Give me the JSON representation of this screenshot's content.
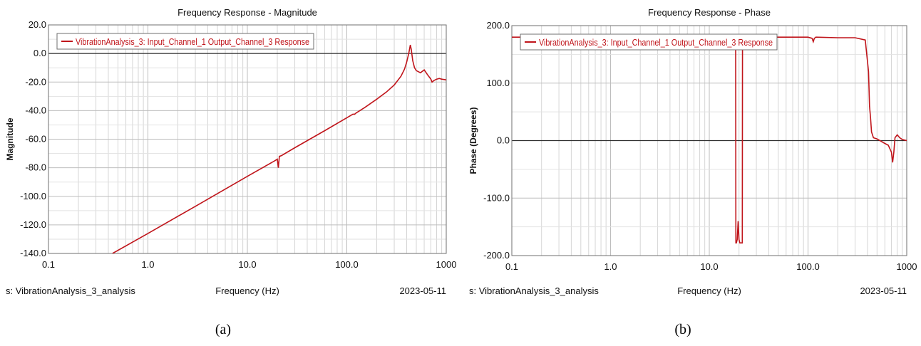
{
  "chart_data": [
    {
      "type": "line",
      "title": "Frequency Response - Magnitude",
      "xlabel": "Frequency (Hz)",
      "ylabel": "Magnitude",
      "xscale": "log",
      "xlim": [
        0.1,
        1000
      ],
      "ylim": [
        -140,
        20
      ],
      "xticks": [
        "0.1",
        "1.0",
        "10.0",
        "100.0",
        "1000"
      ],
      "yticks": [
        "20.0",
        "0.0",
        "-20.0",
        "-40.0",
        "-60.0",
        "-80.0",
        "-100.0",
        "-120.0",
        "-140.0"
      ],
      "grid": true,
      "legend_position": "top-left",
      "footer_left": "s:  VibrationAnalysis_3_analysis",
      "footer_right": "2023-05-11",
      "series": [
        {
          "name": "VibrationAnalysis_3: Input_Channel_1 Output_Channel_3 Response",
          "color": "#c0151b",
          "x": [
            0.44,
            1,
            3,
            10,
            19,
            20,
            20.5,
            21,
            22,
            30,
            60,
            100,
            115,
            120,
            125,
            150,
            200,
            250,
            300,
            350,
            380,
            400,
            420,
            435,
            445,
            460,
            480,
            500,
            550,
            600,
            650,
            700,
            720,
            750,
            800,
            850,
            900,
            1000
          ],
          "y": [
            -140,
            -126,
            -107,
            -86,
            -75,
            -74,
            -80,
            -72,
            -71.5,
            -66,
            -54,
            -45,
            -42.5,
            -42.5,
            -41.5,
            -38,
            -32,
            -27,
            -22,
            -16,
            -11,
            -6,
            0,
            6,
            3,
            -5,
            -10,
            -12,
            -13.5,
            -11.5,
            -15,
            -18,
            -20,
            -19,
            -18,
            -17.5,
            -18,
            -18.5
          ]
        }
      ]
    },
    {
      "type": "line",
      "title": "Frequency Response - Phase",
      "xlabel": "Frequency (Hz)",
      "ylabel": "Phase (Degrees)",
      "xscale": "log",
      "xlim": [
        0.1,
        1000
      ],
      "ylim": [
        -200,
        200
      ],
      "xticks": [
        "0.1",
        "1.0",
        "10.0",
        "100.0",
        "1000"
      ],
      "yticks": [
        "200.0",
        "100.0",
        "0.0",
        "-100.0",
        "-200.0"
      ],
      "grid": true,
      "legend_position": "top-left",
      "footer_left": "s:  VibrationAnalysis_3_analysis",
      "footer_right": "2023-05-11",
      "series": [
        {
          "name": "VibrationAnalysis_3: Input_Channel_1 Output_Channel_3 Response",
          "color": "#c0151b",
          "x": [
            0.1,
            1,
            5,
            10,
            18.5,
            18.6,
            18.8,
            19.2,
            19.6,
            20,
            20.4,
            20.8,
            21.2,
            21.6,
            21.7,
            22,
            30,
            60,
            100,
            110,
            113,
            116,
            120,
            200,
            300,
            380,
            410,
            420,
            430,
            440,
            460,
            500,
            600,
            650,
            700,
            720,
            740,
            760,
            800,
            850,
            900,
            1000
          ],
          "y": [
            180,
            180,
            180,
            180,
            180,
            -178,
            -178,
            -172,
            -140,
            -172,
            -178,
            -178,
            -178,
            -178,
            180,
            180,
            180,
            180,
            180,
            178,
            172,
            178,
            180,
            179,
            179,
            175,
            120,
            60,
            40,
            15,
            5,
            3,
            -5,
            -8,
            -20,
            -38,
            -20,
            5,
            10,
            5,
            2,
            0
          ]
        }
      ]
    }
  ],
  "captions": {
    "a": "(a)",
    "b": "(b)"
  }
}
